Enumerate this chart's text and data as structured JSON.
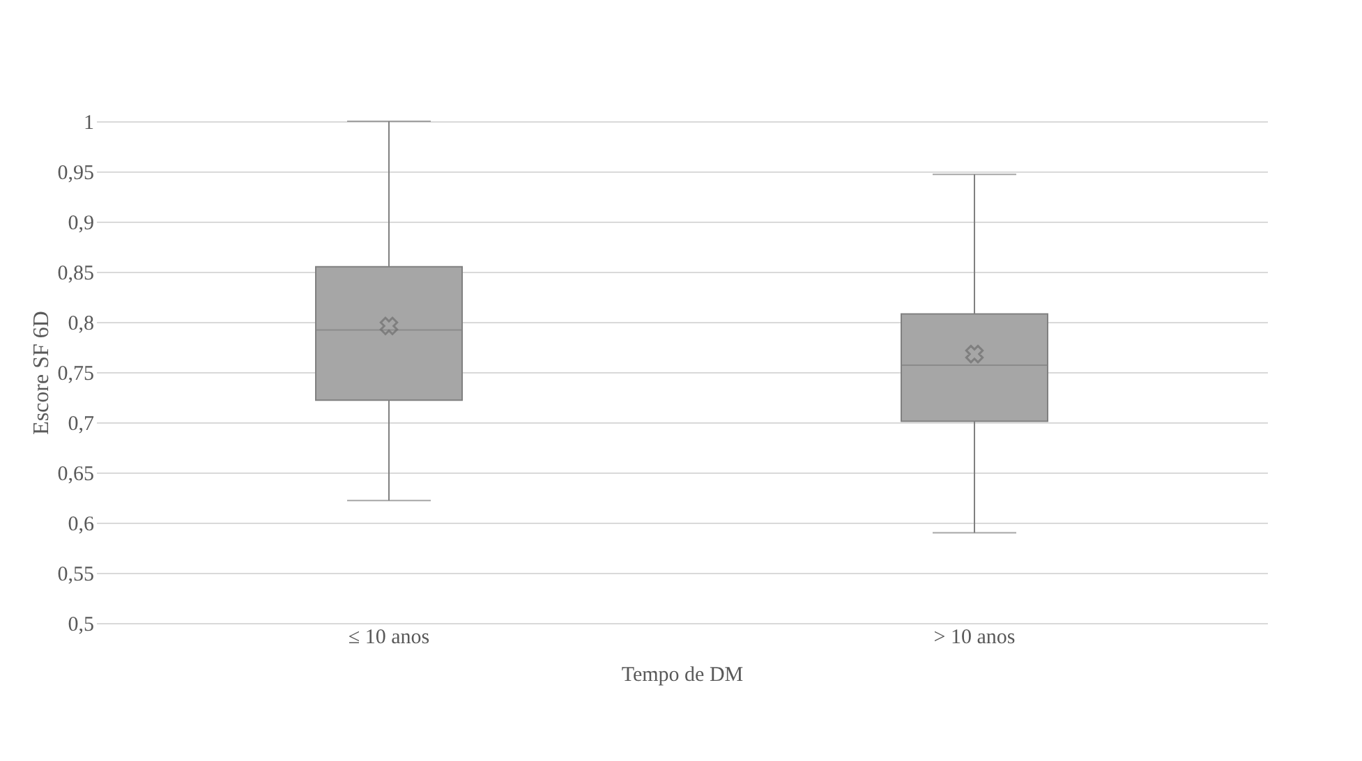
{
  "chart_data": {
    "type": "box",
    "xlabel": "Tempo de DM",
    "ylabel": "Escore SF 6D",
    "categories": [
      "≤ 10 anos",
      "> 10 anos"
    ],
    "boxes": [
      {
        "low": 0.622,
        "q1": 0.722,
        "median": 0.792,
        "q3": 0.855,
        "high": 1.0,
        "mean": 0.796
      },
      {
        "low": 0.59,
        "q1": 0.701,
        "median": 0.757,
        "q3": 0.808,
        "high": 0.947,
        "mean": 0.768
      }
    ],
    "color": "#a6a6a6",
    "ylim": [
      0.5,
      1
    ],
    "yticks": [
      {
        "value": 0.5,
        "label": "0,5"
      },
      {
        "value": 0.55,
        "label": "0,55"
      },
      {
        "value": 0.6,
        "label": "0,6"
      },
      {
        "value": 0.65,
        "label": "0,65"
      },
      {
        "value": 0.7,
        "label": "0,7"
      },
      {
        "value": 0.75,
        "label": "0,75"
      },
      {
        "value": 0.8,
        "label": "0,8"
      },
      {
        "value": 0.85,
        "label": "0,85"
      },
      {
        "value": 0.9,
        "label": "0,9"
      },
      {
        "value": 0.95,
        "label": "0,95"
      },
      {
        "value": 1,
        "label": "1"
      }
    ],
    "grid": "y",
    "marker": "cross"
  }
}
